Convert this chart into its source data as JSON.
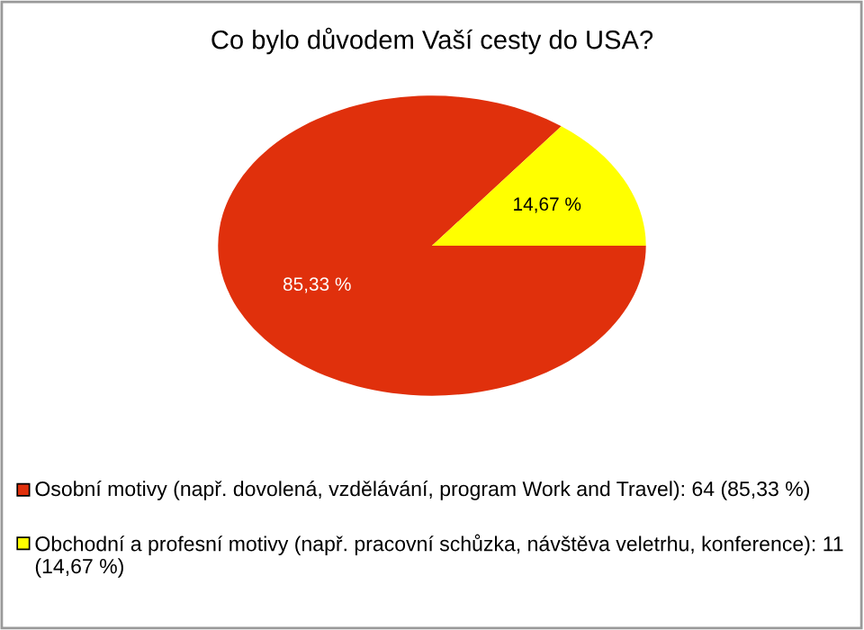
{
  "chart_data": {
    "type": "pie",
    "title": "Co bylo důvodem Vaší cesty do USA?",
    "categories": [
      "Osobní motivy (např. dovolená, vzdělávání, program Work and Travel): 64 (85,33 %)",
      "Obchodní a profesní motivy (např. pracovní schůzka, návštěva veletrhu, konference): 11 (14,67 %)"
    ],
    "values": [
      85.33,
      14.67
    ],
    "colors": [
      "#e0300c",
      "#ffff00"
    ],
    "value_labels": [
      "85,33 %",
      "14,67 %"
    ],
    "legend": "bottom"
  }
}
